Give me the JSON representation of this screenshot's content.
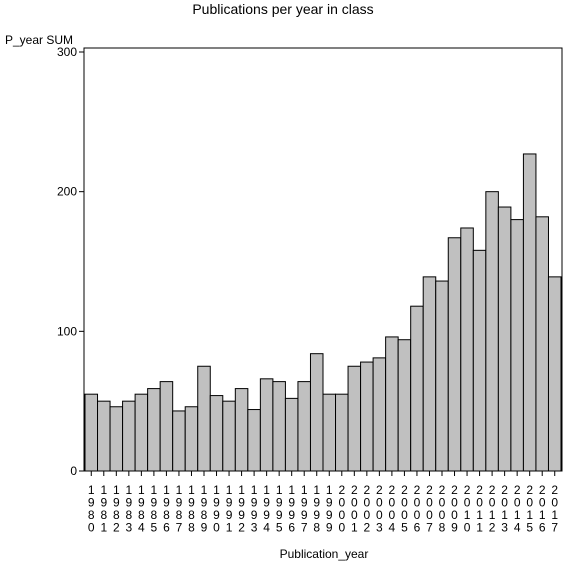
{
  "chart_data": {
    "type": "bar",
    "title": "Publications per year in class",
    "xlabel": "Publication_year",
    "ylabel": "P_year SUM",
    "ylim": [
      0,
      300
    ],
    "yticks": [
      0,
      100,
      200,
      300
    ],
    "grid": false,
    "bar_color": "#c0c0c0",
    "categories": [
      "1980",
      "1981",
      "1982",
      "1983",
      "1984",
      "1985",
      "1986",
      "1987",
      "1988",
      "1989",
      "1990",
      "1991",
      "1992",
      "1993",
      "1994",
      "1995",
      "1996",
      "1997",
      "1998",
      "1999",
      "2000",
      "2001",
      "2002",
      "2003",
      "2004",
      "2005",
      "2006",
      "2007",
      "2008",
      "2009",
      "2010",
      "2011",
      "2012",
      "2013",
      "2014",
      "2015",
      "2016",
      "2017"
    ],
    "values": [
      55,
      50,
      46,
      50,
      55,
      59,
      64,
      43,
      46,
      75,
      54,
      50,
      59,
      44,
      66,
      64,
      52,
      64,
      84,
      55,
      55,
      75,
      78,
      81,
      96,
      94,
      118,
      139,
      136,
      167,
      174,
      158,
      200,
      189,
      180,
      227,
      182,
      139
    ]
  }
}
